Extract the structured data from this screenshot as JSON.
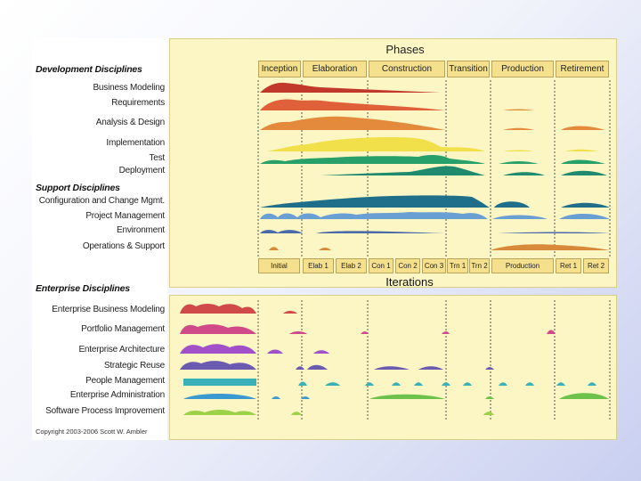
{
  "phases_title": "Phases",
  "iterations_title": "Iterations",
  "phases": [
    "Inception",
    "Elaboration",
    "Construction",
    "Transition",
    "Production",
    "Retirement"
  ],
  "iterations": [
    "Initial",
    "Elab 1",
    "Elab 2",
    "Con 1",
    "Con 2",
    "Con 3",
    "Trn 1",
    "Trn 2",
    "Production",
    "Ret 1",
    "Ret 2"
  ],
  "development": {
    "header": "Development Disciplines",
    "items": [
      "Business Modeling",
      "Requirements",
      "Analysis & Design",
      "Implementation",
      "Test",
      "Deployment"
    ]
  },
  "support": {
    "header": "Support Disciplines",
    "items": [
      "Configuration and Change Mgmt.",
      "Project Management",
      "Environment",
      "Operations & Support"
    ]
  },
  "enterprise": {
    "header": "Enterprise Disciplines",
    "items": [
      "Enterprise Business Modeling",
      "Portfolio Management",
      "Enterprise Architecture",
      "Strategic Reuse",
      "People Management",
      "Enterprise Administration",
      "Software Process Improvement"
    ]
  },
  "copyright": "Copyright 2003-2006 Scott W. Ambler",
  "colors": {
    "business_modeling": "#c0392b",
    "requirements": "#e0603a",
    "analysis_design": "#e48a3c",
    "implementation": "#f1e04a",
    "test": "#27a06a",
    "deployment": "#1f8a6e",
    "config": "#1f6f8b",
    "project_mgmt": "#6a9fd4",
    "environment": "#4a6aa8",
    "operations": "#d88a3a",
    "ent_business": "#d04a4a",
    "portfolio": "#d04a8a",
    "ent_arch": "#a050c8",
    "reuse": "#6a5ab0",
    "people": "#3ab0b8",
    "ent_admin": "#3a9ad0",
    "spi": "#6cc24a"
  }
}
